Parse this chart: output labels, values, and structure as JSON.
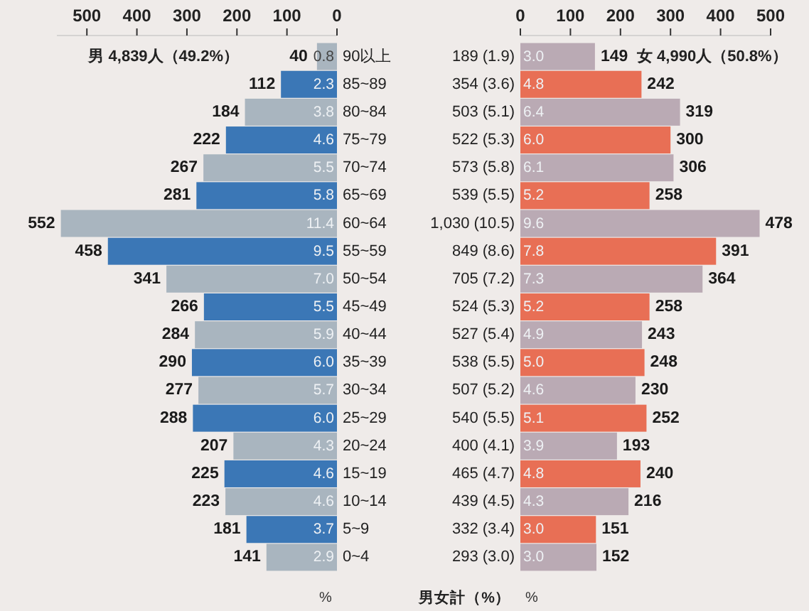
{
  "chart_data": [
    {
      "type": "bar",
      "orientation": "horizontal",
      "title": "男 4,839人（49.2%）",
      "xlabel": "%",
      "categories": [
        "90以上",
        "85~89",
        "80~84",
        "75~79",
        "70~74",
        "65~69",
        "60~64",
        "55~59",
        "50~54",
        "45~49",
        "40~44",
        "35~39",
        "30~34",
        "25~29",
        "20~24",
        "15~19",
        "10~14",
        "5~9",
        "0~4"
      ],
      "values": [
        40,
        112,
        184,
        222,
        267,
        281,
        552,
        458,
        341,
        266,
        284,
        290,
        277,
        288,
        207,
        225,
        223,
        181,
        141
      ],
      "colors": [
        "#a9b5bf",
        "#3b77b6",
        "#a9b5bf",
        "#3b77b6",
        "#a9b5bf",
        "#3b77b6",
        "#a9b5bf",
        "#3b77b6",
        "#a9b5bf",
        "#3b77b6",
        "#a9b5bf",
        "#3b77b6",
        "#a9b5bf",
        "#3b77b6",
        "#a9b5bf",
        "#3b77b6",
        "#a9b5bf",
        "#3b77b6",
        "#a9b5bf"
      ],
      "xlim": [
        560,
        0
      ],
      "xticks": [
        500,
        400,
        300,
        200,
        100,
        0
      ],
      "data_labels": true,
      "annotations": [
        {
          "text": "0.8",
          "y": "90以上"
        },
        {
          "text": "2.3",
          "y": "85~89"
        },
        {
          "text": "3.8",
          "y": "80~84"
        },
        {
          "text": "4.6",
          "y": "75~79"
        },
        {
          "text": "5.5",
          "y": "70~74"
        },
        {
          "text": "5.8",
          "y": "65~69"
        },
        {
          "text": "11.4",
          "y": "60~64"
        },
        {
          "text": "9.5",
          "y": "55~59"
        },
        {
          "text": "7.0",
          "y": "50~54"
        },
        {
          "text": "5.5",
          "y": "45~49"
        },
        {
          "text": "5.9",
          "y": "40~44"
        },
        {
          "text": "6.0",
          "y": "35~39"
        },
        {
          "text": "5.7",
          "y": "30~34"
        },
        {
          "text": "6.0",
          "y": "25~29"
        },
        {
          "text": "4.3",
          "y": "20~24"
        },
        {
          "text": "4.6",
          "y": "15~19"
        },
        {
          "text": "4.6",
          "y": "10~14"
        },
        {
          "text": "3.7",
          "y": "5~9"
        },
        {
          "text": "2.9",
          "y": "0~4"
        }
      ]
    },
    {
      "type": "bar",
      "orientation": "horizontal",
      "title": "女 4,990人（50.8%）",
      "xlabel": "%",
      "ylabel": "男女計（%）",
      "categories": [
        "189 (1.9)",
        "354 (3.6)",
        "503 (5.1)",
        "522 (5.3)",
        "573 (5.8)",
        "539 (5.5)",
        "1,030 (10.5)",
        "849 (8.6)",
        "705 (7.2)",
        "524 (5.3)",
        "527 (5.4)",
        "538 (5.5)",
        "507 (5.2)",
        "540 (5.5)",
        "400 (4.1)",
        "465 (4.7)",
        "439 (4.5)",
        "332 (3.4)",
        "293 (3.0)"
      ],
      "values": [
        149,
        242,
        319,
        300,
        306,
        258,
        478,
        391,
        364,
        258,
        243,
        248,
        230,
        252,
        193,
        240,
        216,
        151,
        152
      ],
      "colors": [
        "#baaab4",
        "#e86f55",
        "#baaab4",
        "#e86f55",
        "#baaab4",
        "#e86f55",
        "#baaab4",
        "#e86f55",
        "#baaab4",
        "#e86f55",
        "#baaab4",
        "#e86f55",
        "#baaab4",
        "#e86f55",
        "#baaab4",
        "#e86f55",
        "#baaab4",
        "#e86f55",
        "#baaab4"
      ],
      "xlim": [
        0,
        500
      ],
      "xticks": [
        0,
        100,
        200,
        300,
        400,
        500
      ],
      "data_labels": true,
      "annotations": [
        {
          "text": "3.0",
          "y": "189 (1.9)"
        },
        {
          "text": "4.8",
          "y": "354 (3.6)"
        },
        {
          "text": "6.4",
          "y": "503 (5.1)"
        },
        {
          "text": "6.0",
          "y": "522 (5.3)"
        },
        {
          "text": "6.1",
          "y": "573 (5.8)"
        },
        {
          "text": "5.2",
          "y": "539 (5.5)"
        },
        {
          "text": "9.6",
          "y": "1,030 (10.5)"
        },
        {
          "text": "7.8",
          "y": "849 (8.6)"
        },
        {
          "text": "7.3",
          "y": "705 (7.2)"
        },
        {
          "text": "5.2",
          "y": "524 (5.3)"
        },
        {
          "text": "4.9",
          "y": "527 (5.4)"
        },
        {
          "text": "5.0",
          "y": "538 (5.5)"
        },
        {
          "text": "4.6",
          "y": "507 (5.2)"
        },
        {
          "text": "5.1",
          "y": "540 (5.5)"
        },
        {
          "text": "3.9",
          "y": "400 (4.1)"
        },
        {
          "text": "4.8",
          "y": "465 (4.7)"
        },
        {
          "text": "4.3",
          "y": "439 (4.5)"
        },
        {
          "text": "3.0",
          "y": "332 (3.4)"
        },
        {
          "text": "3.0",
          "y": "293 (3.0)"
        }
      ]
    }
  ]
}
